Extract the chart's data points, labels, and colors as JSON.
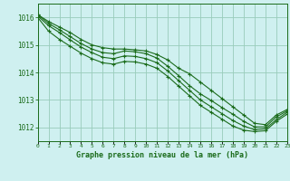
{
  "title": "Graphe pression niveau de la mer (hPa)",
  "bg_color": "#cff0f0",
  "grid_color": "#99ccbb",
  "line_color": "#1a6b1a",
  "xlim": [
    0,
    23
  ],
  "ylim": [
    1011.5,
    1016.5
  ],
  "yticks": [
    1012,
    1013,
    1014,
    1015,
    1016
  ],
  "xtick_labels": [
    "0",
    "1",
    "2",
    "3",
    "4",
    "5",
    "6",
    "7",
    "8",
    "9",
    "10",
    "11",
    "12",
    "13",
    "14",
    "15",
    "16",
    "17",
    "18",
    "19",
    "20",
    "21",
    "22",
    "23"
  ],
  "series": [
    [
      1016.1,
      1015.85,
      1015.65,
      1015.45,
      1015.2,
      1015.0,
      1014.9,
      1014.85,
      1014.85,
      1014.82,
      1014.78,
      1014.65,
      1014.45,
      1014.15,
      1013.95,
      1013.65,
      1013.35,
      1013.05,
      1012.75,
      1012.45,
      1012.15,
      1012.1,
      1012.45,
      1012.65
    ],
    [
      1016.1,
      1015.78,
      1015.55,
      1015.3,
      1015.05,
      1014.85,
      1014.72,
      1014.68,
      1014.78,
      1014.75,
      1014.68,
      1014.52,
      1014.22,
      1013.88,
      1013.52,
      1013.22,
      1012.98,
      1012.72,
      1012.48,
      1012.22,
      1012.02,
      1012.02,
      1012.38,
      1012.6
    ],
    [
      1016.05,
      1015.7,
      1015.45,
      1015.18,
      1014.92,
      1014.72,
      1014.55,
      1014.5,
      1014.6,
      1014.58,
      1014.5,
      1014.35,
      1014.05,
      1013.7,
      1013.35,
      1013.0,
      1012.75,
      1012.5,
      1012.25,
      1012.05,
      1011.92,
      1011.95,
      1012.28,
      1012.55
    ],
    [
      1016.0,
      1015.5,
      1015.2,
      1014.95,
      1014.7,
      1014.5,
      1014.35,
      1014.3,
      1014.4,
      1014.38,
      1014.3,
      1014.15,
      1013.85,
      1013.5,
      1013.15,
      1012.8,
      1012.55,
      1012.3,
      1012.05,
      1011.9,
      1011.85,
      1011.88,
      1012.22,
      1012.48
    ]
  ]
}
